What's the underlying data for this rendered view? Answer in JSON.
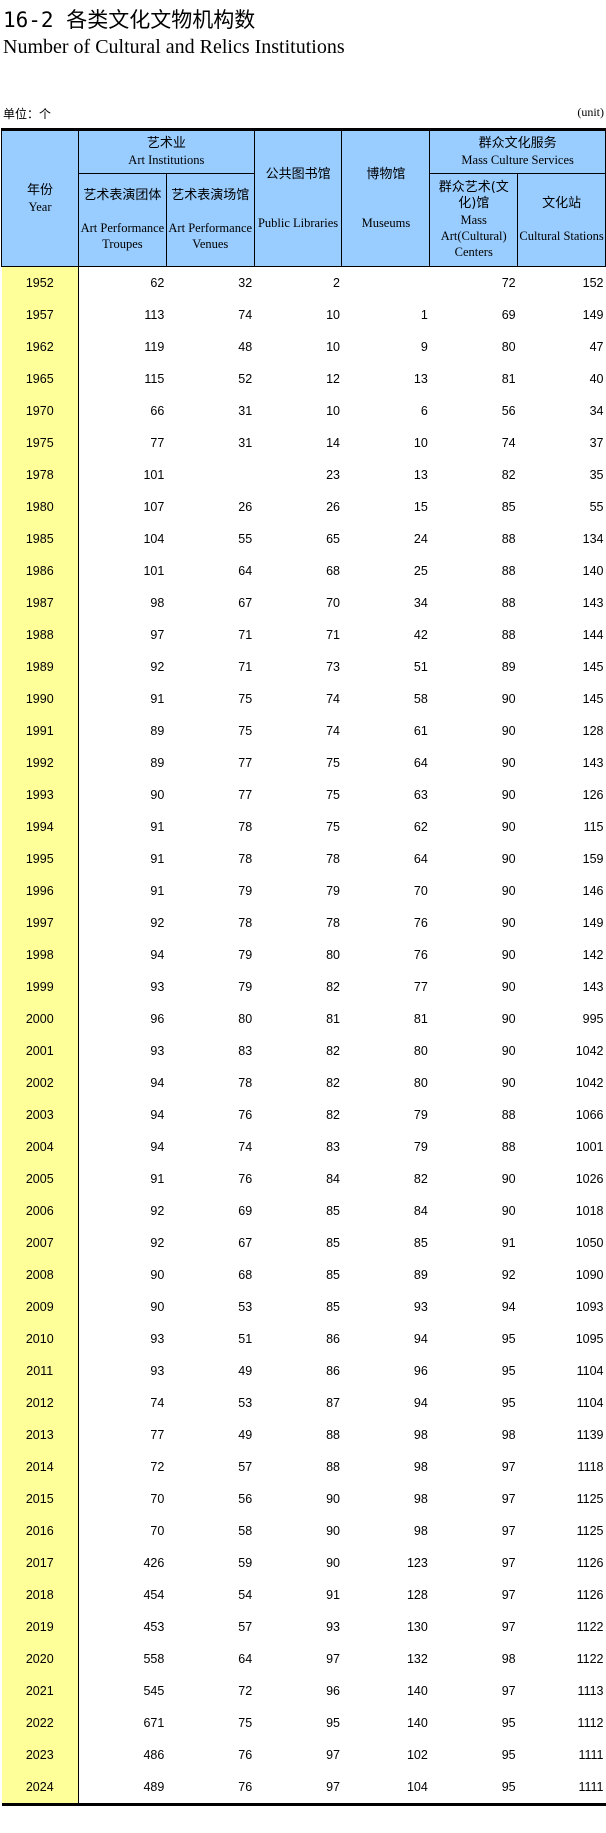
{
  "title": "16-2 各类文化文物机构数",
  "subtitle": "Number of Cultural and Relics Institutions",
  "unit_cn": "单位：个",
  "unit_en": "(unit)",
  "header": {
    "year_cn": "年份",
    "year_en": "Year",
    "art_cn": "艺术业",
    "art_en": "Art Institutions",
    "troupes_cn": "艺术表演团体",
    "troupes_en": "Art Performance Troupes",
    "venues_cn": "艺术表演场馆",
    "venues_en": "Art Performance Venues",
    "libraries_cn": "公共图书馆",
    "libraries_en": "Public Libraries",
    "museums_cn": "博物馆",
    "museums_en": "Museums",
    "mass_cn": "群众文化服务",
    "mass_en": "Mass Culture Services",
    "centers_cn": "群众艺术(文化)馆",
    "centers_en": "Mass Art(Cultural) Centers",
    "stations_cn": "文化站",
    "stations_en": "Cultural Stations"
  },
  "rows": [
    [
      "1952",
      "62",
      "32",
      "2",
      "",
      "72",
      "152"
    ],
    [
      "1957",
      "113",
      "74",
      "10",
      "1",
      "69",
      "149"
    ],
    [
      "1962",
      "119",
      "48",
      "10",
      "9",
      "80",
      "47"
    ],
    [
      "1965",
      "115",
      "52",
      "12",
      "13",
      "81",
      "40"
    ],
    [
      "1970",
      "66",
      "31",
      "10",
      "6",
      "56",
      "34"
    ],
    [
      "1975",
      "77",
      "31",
      "14",
      "10",
      "74",
      "37"
    ],
    [
      "1978",
      "101",
      "",
      "23",
      "13",
      "82",
      "35"
    ],
    [
      "1980",
      "107",
      "26",
      "26",
      "15",
      "85",
      "55"
    ],
    [
      "1985",
      "104",
      "55",
      "65",
      "24",
      "88",
      "134"
    ],
    [
      "1986",
      "101",
      "64",
      "68",
      "25",
      "88",
      "140"
    ],
    [
      "1987",
      "98",
      "67",
      "70",
      "34",
      "88",
      "143"
    ],
    [
      "1988",
      "97",
      "71",
      "71",
      "42",
      "88",
      "144"
    ],
    [
      "1989",
      "92",
      "71",
      "73",
      "51",
      "89",
      "145"
    ],
    [
      "1990",
      "91",
      "75",
      "74",
      "58",
      "90",
      "145"
    ],
    [
      "1991",
      "89",
      "75",
      "74",
      "61",
      "90",
      "128"
    ],
    [
      "1992",
      "89",
      "77",
      "75",
      "64",
      "90",
      "143"
    ],
    [
      "1993",
      "90",
      "77",
      "75",
      "63",
      "90",
      "126"
    ],
    [
      "1994",
      "91",
      "78",
      "75",
      "62",
      "90",
      "115"
    ],
    [
      "1995",
      "91",
      "78",
      "78",
      "64",
      "90",
      "159"
    ],
    [
      "1996",
      "91",
      "79",
      "79",
      "70",
      "90",
      "146"
    ],
    [
      "1997",
      "92",
      "78",
      "78",
      "76",
      "90",
      "149"
    ],
    [
      "1998",
      "94",
      "79",
      "80",
      "76",
      "90",
      "142"
    ],
    [
      "1999",
      "93",
      "79",
      "82",
      "77",
      "90",
      "143"
    ],
    [
      "2000",
      "96",
      "80",
      "81",
      "81",
      "90",
      "995"
    ],
    [
      "2001",
      "93",
      "83",
      "82",
      "80",
      "90",
      "1042"
    ],
    [
      "2002",
      "94",
      "78",
      "82",
      "80",
      "90",
      "1042"
    ],
    [
      "2003",
      "94",
      "76",
      "82",
      "79",
      "88",
      "1066"
    ],
    [
      "2004",
      "94",
      "74",
      "83",
      "79",
      "88",
      "1001"
    ],
    [
      "2005",
      "91",
      "76",
      "84",
      "82",
      "90",
      "1026"
    ],
    [
      "2006",
      "92",
      "69",
      "85",
      "84",
      "90",
      "1018"
    ],
    [
      "2007",
      "92",
      "67",
      "85",
      "85",
      "91",
      "1050"
    ],
    [
      "2008",
      "90",
      "68",
      "85",
      "89",
      "92",
      "1090"
    ],
    [
      "2009",
      "90",
      "53",
      "85",
      "93",
      "94",
      "1093"
    ],
    [
      "2010",
      "93",
      "51",
      "86",
      "94",
      "95",
      "1095"
    ],
    [
      "2011",
      "93",
      "49",
      "86",
      "96",
      "95",
      "1104"
    ],
    [
      "2012",
      "74",
      "53",
      "87",
      "94",
      "95",
      "1104"
    ],
    [
      "2013",
      "77",
      "49",
      "88",
      "98",
      "98",
      "1139"
    ],
    [
      "2014",
      "72",
      "57",
      "88",
      "98",
      "97",
      "1118"
    ],
    [
      "2015",
      "70",
      "56",
      "90",
      "98",
      "97",
      "1125"
    ],
    [
      "2016",
      "70",
      "58",
      "90",
      "98",
      "97",
      "1125"
    ],
    [
      "2017",
      "426",
      "59",
      "90",
      "123",
      "97",
      "1126"
    ],
    [
      "2018",
      "454",
      "54",
      "91",
      "128",
      "97",
      "1126"
    ],
    [
      "2019",
      "453",
      "57",
      "93",
      "130",
      "97",
      "1122"
    ],
    [
      "2020",
      "558",
      "64",
      "97",
      "132",
      "98",
      "1122"
    ],
    [
      "2021",
      "545",
      "72",
      "96",
      "140",
      "97",
      "1113"
    ],
    [
      "2022",
      "671",
      "75",
      "95",
      "140",
      "95",
      "1112"
    ],
    [
      "2023",
      "486",
      "76",
      "97",
      "102",
      "95",
      "1111"
    ],
    [
      "2024",
      "489",
      "76",
      "97",
      "104",
      "95",
      "1111"
    ]
  ]
}
